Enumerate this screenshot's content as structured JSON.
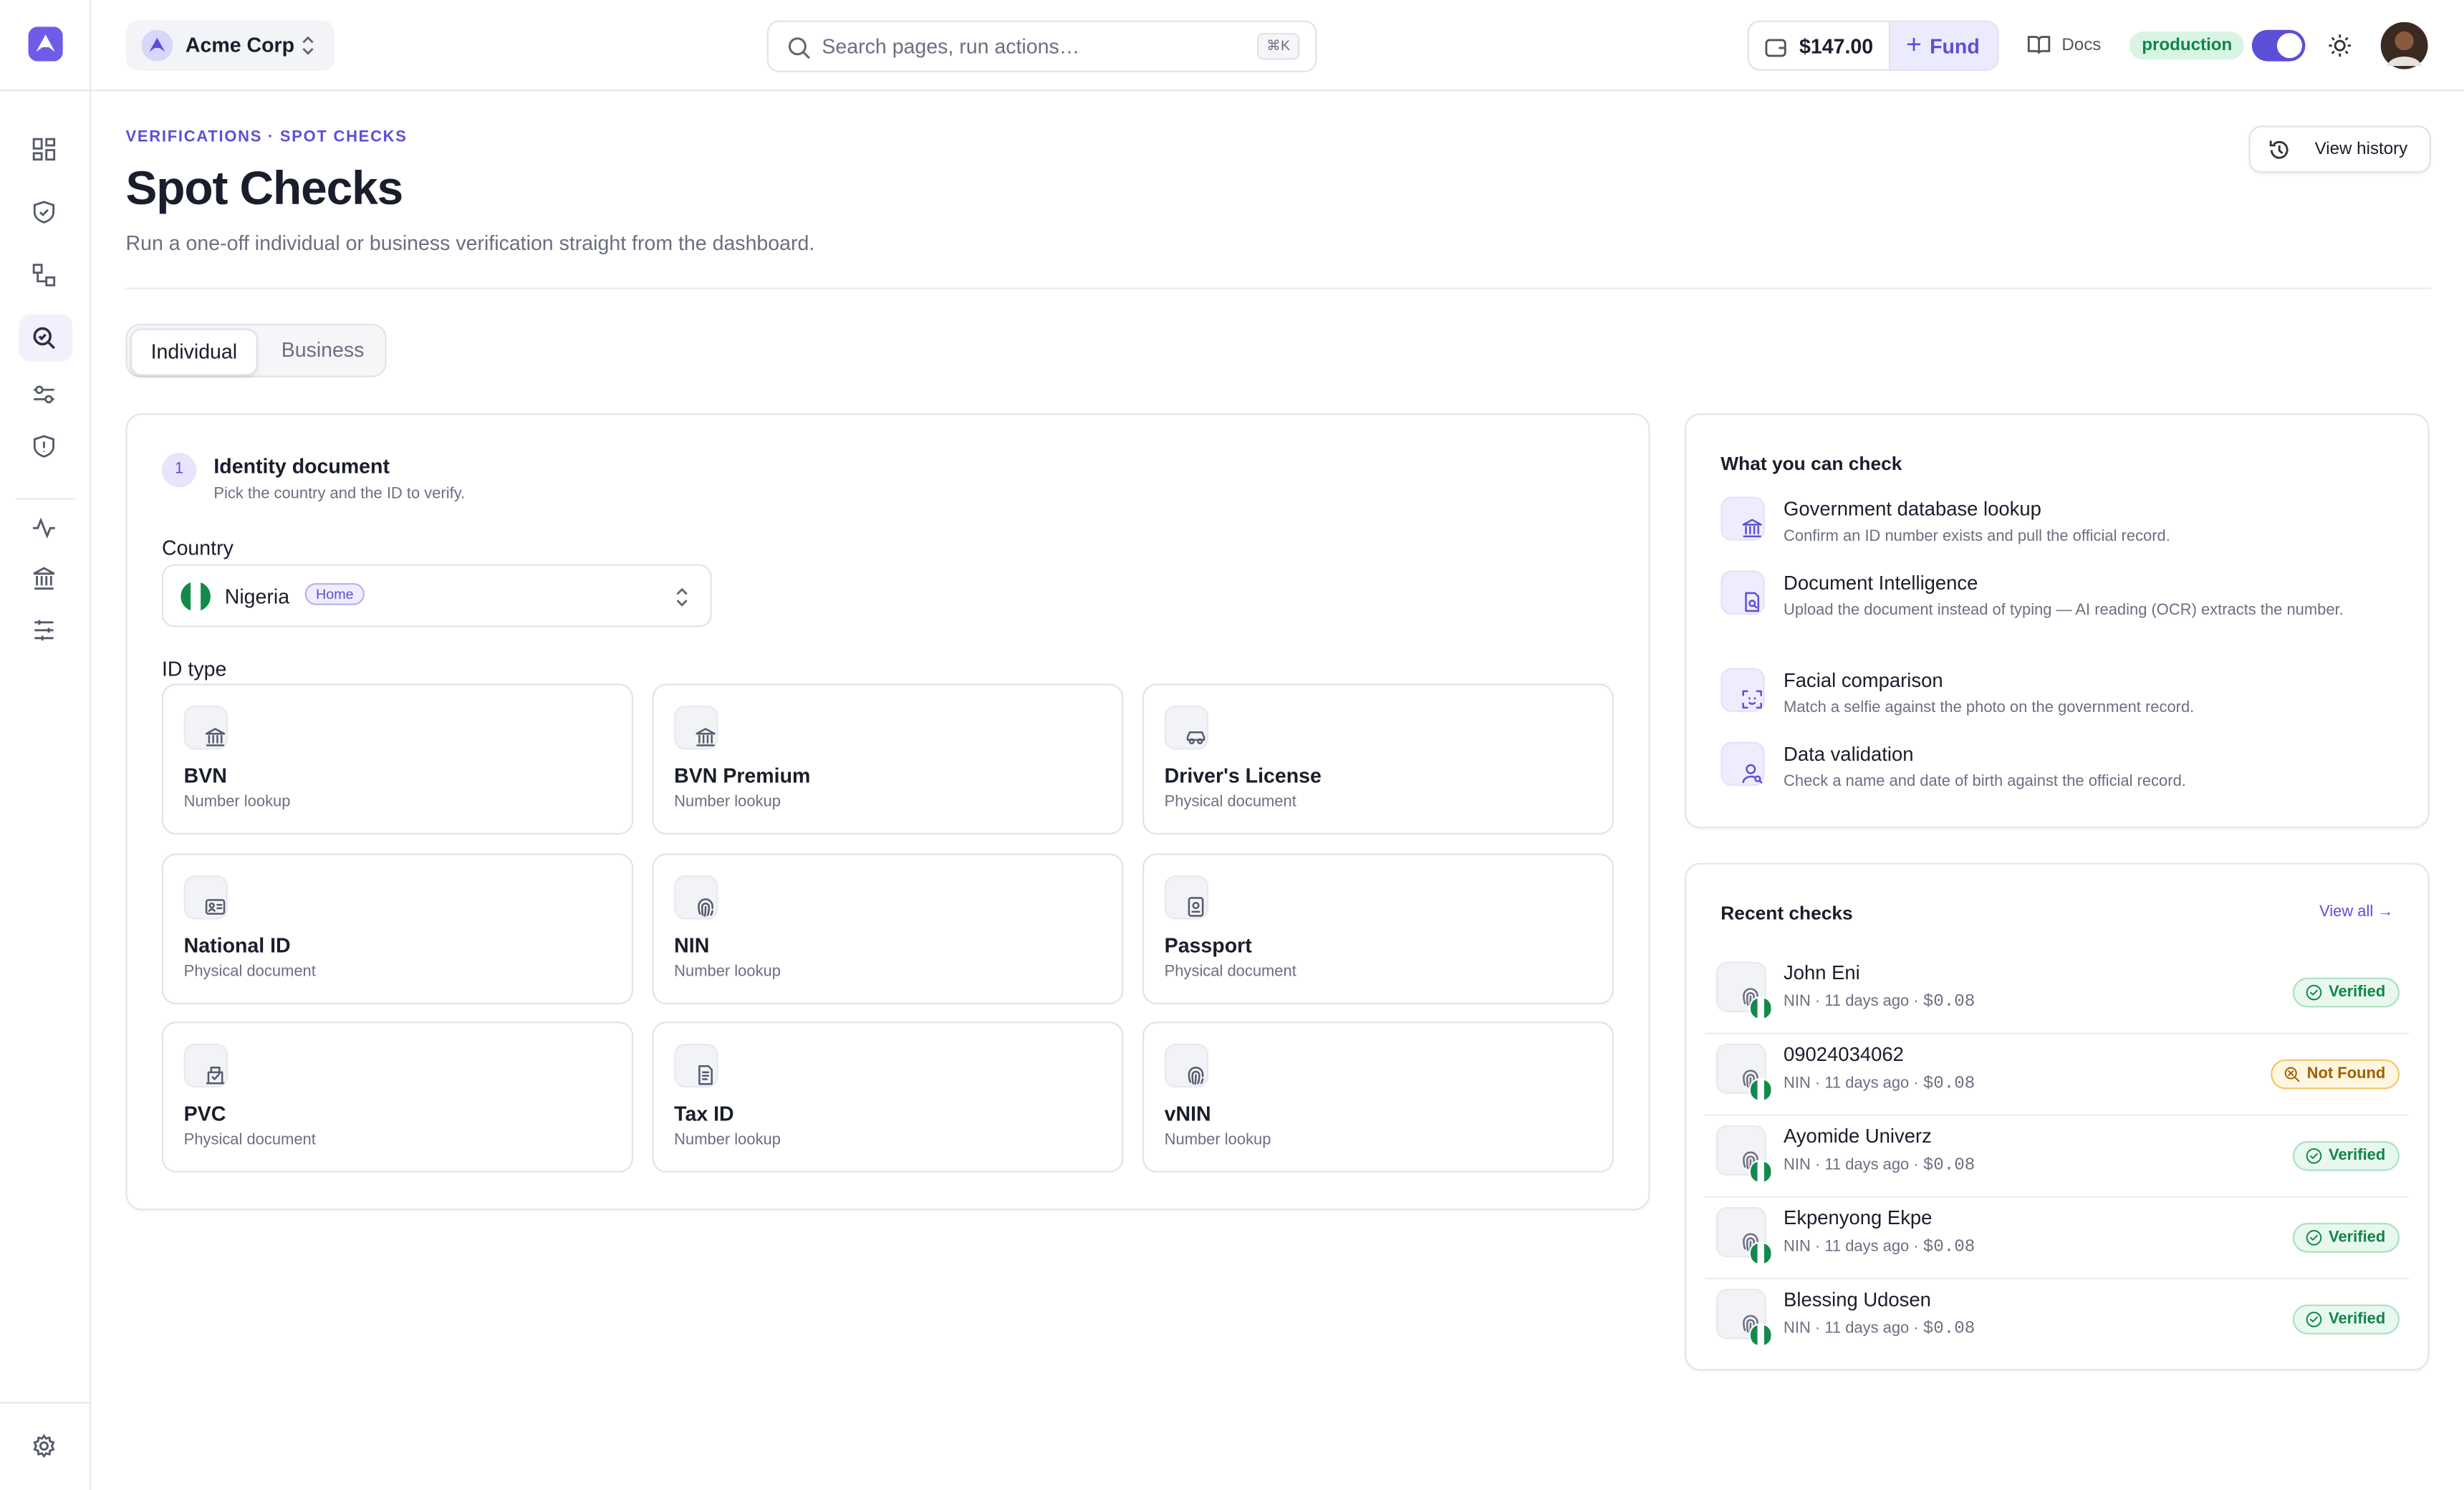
{
  "brand": {
    "org": "Acme Corp"
  },
  "header": {
    "search_placeholder": "Search pages, run actions…",
    "shortcut": "⌘K",
    "balance": "$147.00",
    "fund": "Fund",
    "docs": "Docs",
    "environment": "production"
  },
  "page": {
    "breadcrumb": "VERIFICATIONS · SPOT CHECKS",
    "title": "Spot Checks",
    "subtitle": "Run a one-off individual or business verification straight from the dashboard.",
    "view_history": "View history"
  },
  "tabs": [
    "Individual",
    "Business"
  ],
  "form": {
    "step": "1",
    "step_title": "Identity document",
    "step_subtitle": "Pick the country and the ID to verify.",
    "country_label": "Country",
    "country": "Nigeria",
    "country_badge": "Home",
    "id_type_label": "ID type",
    "id_types": [
      {
        "name": "BVN",
        "kind": "Number lookup"
      },
      {
        "name": "BVN Premium",
        "kind": "Number lookup"
      },
      {
        "name": "Driver's License",
        "kind": "Physical document"
      },
      {
        "name": "National ID",
        "kind": "Physical document"
      },
      {
        "name": "NIN",
        "kind": "Number lookup"
      },
      {
        "name": "Passport",
        "kind": "Physical document"
      },
      {
        "name": "PVC",
        "kind": "Physical document"
      },
      {
        "name": "Tax ID",
        "kind": "Number lookup"
      },
      {
        "name": "vNIN",
        "kind": "Number lookup"
      }
    ]
  },
  "capabilities": {
    "title": "What you can check",
    "items": [
      {
        "title": "Government database lookup",
        "description": "Confirm an ID number exists and pull the official record."
      },
      {
        "title": "Document Intelligence",
        "description": "Upload the document instead of typing — AI reading (OCR) extracts the number."
      },
      {
        "title": "Facial comparison",
        "description": "Match a selfie against the photo on the government record."
      },
      {
        "title": "Data validation",
        "description": "Check a name and date of birth against the official record."
      }
    ]
  },
  "recent": {
    "title": "Recent checks",
    "view_all": "View all",
    "items": [
      {
        "name": "John Eni",
        "meta": "NIN · 11 days ago ·",
        "amount": "$0.08",
        "status": "Verified"
      },
      {
        "name": "09024034062",
        "meta": "NIN · 11 days ago ·",
        "amount": "$0.08",
        "status": "Not Found"
      },
      {
        "name": "Ayomide Univerz",
        "meta": "NIN · 11 days ago ·",
        "amount": "$0.08",
        "status": "Verified"
      },
      {
        "name": "Ekpenyong Ekpe",
        "meta": "NIN · 11 days ago ·",
        "amount": "$0.08",
        "status": "Verified"
      },
      {
        "name": "Blessing Udosen",
        "meta": "NIN · 11 days ago ·",
        "amount": "$0.08",
        "status": "Verified"
      }
    ]
  }
}
